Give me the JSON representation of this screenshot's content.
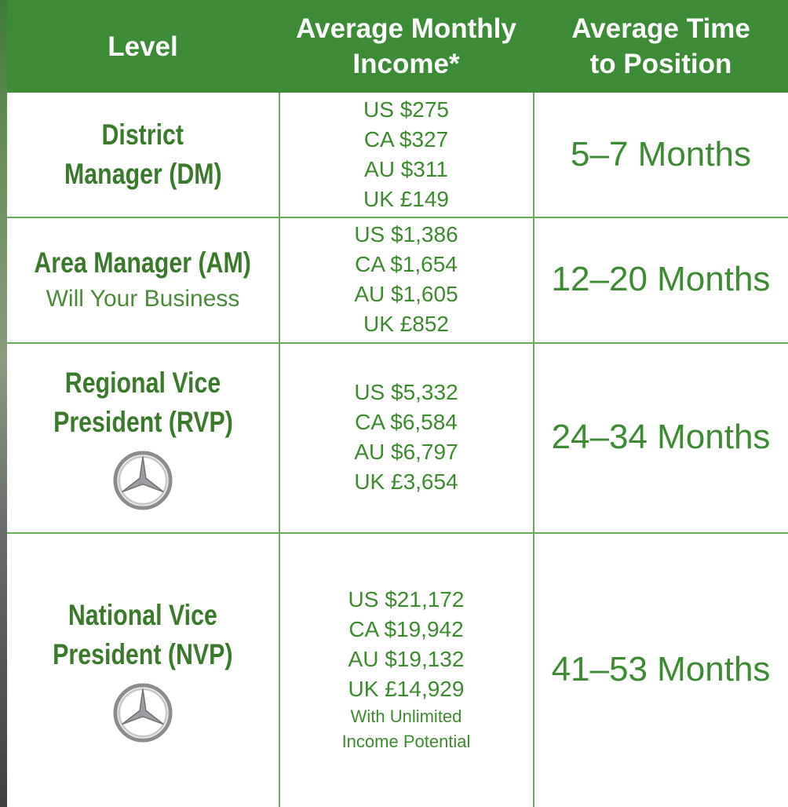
{
  "header": {
    "columns": [
      [
        "Level"
      ],
      [
        "Average Monthly",
        "Income*"
      ],
      [
        "Average Time",
        "to Position"
      ]
    ]
  },
  "table": {
    "rows": [
      {
        "level": [
          "District",
          "Manager (DM)"
        ],
        "income": [
          "US $275",
          "CA $327",
          "AU $311",
          "UK £149"
        ],
        "time": "5–7 Months"
      },
      {
        "level": [
          "Area Manager (AM)"
        ],
        "level_note": "Will Your Business",
        "income": [
          "US $1,386",
          "CA $1,654",
          "AU $1,605",
          "UK £852"
        ],
        "time": "12–20 Months"
      },
      {
        "level": [
          "Regional Vice",
          "President (RVP)"
        ],
        "income": [
          "US $5,332",
          "CA $6,584",
          "AU $6,797",
          "UK £3,654"
        ],
        "time": "24–34 Months"
      },
      {
        "level": [
          "National Vice",
          "President (NVP)"
        ],
        "income": [
          "US $21,172",
          "CA $19,942",
          "AU $19,132",
          "UK £14,929"
        ],
        "income_note": [
          "With Unlimited",
          "Income Potential"
        ],
        "time": "41–53 Months"
      }
    ]
  }
}
